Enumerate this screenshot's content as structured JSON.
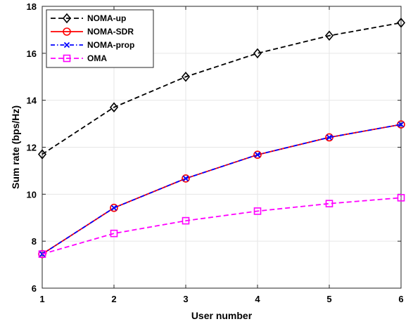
{
  "chart_data": {
    "type": "line",
    "title": "",
    "xlabel": "User number",
    "ylabel": "Sum rate (bps/Hz)",
    "xlim": [
      1,
      6
    ],
    "ylim": [
      6,
      18
    ],
    "xticks": [
      "1",
      "2",
      "3",
      "4",
      "5",
      "6"
    ],
    "yticks": [
      "6",
      "8",
      "10",
      "12",
      "14",
      "16",
      "18"
    ],
    "grid": true,
    "legend_position": "top-left",
    "x": [
      1,
      2,
      3,
      4,
      5,
      6
    ],
    "series": [
      {
        "name": "NOMA-up",
        "values": [
          11.7,
          13.7,
          15.0,
          16.0,
          16.75,
          17.3
        ],
        "color": "#000000",
        "marker": "diamond",
        "line": "dashed"
      },
      {
        "name": "NOMA-SDR",
        "values": [
          7.45,
          9.42,
          10.67,
          11.68,
          12.42,
          12.97
        ],
        "color": "#ff0000",
        "marker": "circle",
        "line": "solid"
      },
      {
        "name": "NOMA-prop",
        "values": [
          7.45,
          9.42,
          10.67,
          11.68,
          12.42,
          12.97
        ],
        "color": "#0000ff",
        "marker": "x",
        "line": "dashdot"
      },
      {
        "name": "OMA",
        "values": [
          7.45,
          8.33,
          8.87,
          9.28,
          9.6,
          9.85
        ],
        "color": "#ff00ff",
        "marker": "square",
        "line": "dashed"
      }
    ]
  }
}
